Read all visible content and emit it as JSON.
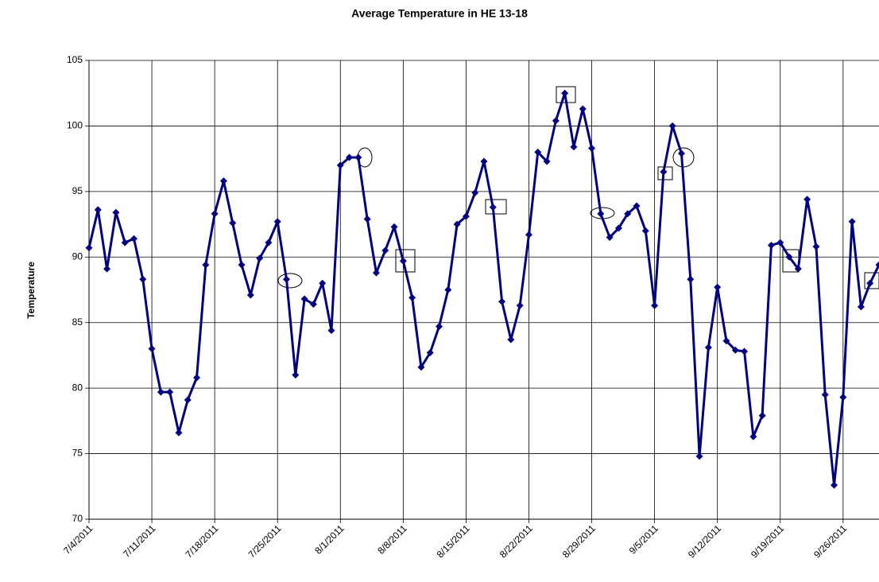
{
  "chart_data": {
    "type": "line",
    "title": "Average Temperature in HE 13-18",
    "y_label": "Temperature",
    "x": [
      "7/4/2011",
      "7/5/2011",
      "7/6/2011",
      "7/7/2011",
      "7/8/2011",
      "7/9/2011",
      "7/10/2011",
      "7/11/2011",
      "7/12/2011",
      "7/13/2011",
      "7/14/2011",
      "7/15/2011",
      "7/16/2011",
      "7/17/2011",
      "7/18/2011",
      "7/19/2011",
      "7/20/2011",
      "7/21/2011",
      "7/22/2011",
      "7/23/2011",
      "7/24/2011",
      "7/25/2011",
      "7/26/2011",
      "7/27/2011",
      "7/28/2011",
      "7/29/2011",
      "7/30/2011",
      "7/31/2011",
      "8/1/2011",
      "8/2/2011",
      "8/3/2011",
      "8/4/2011",
      "8/5/2011",
      "8/6/2011",
      "8/7/2011",
      "8/8/2011",
      "8/9/2011",
      "8/10/2011",
      "8/11/2011",
      "8/12/2011",
      "8/13/2011",
      "8/14/2011",
      "8/15/2011",
      "8/16/2011",
      "8/17/2011",
      "8/18/2011",
      "8/19/2011",
      "8/20/2011",
      "8/21/2011",
      "8/22/2011",
      "8/23/2011",
      "8/24/2011",
      "8/25/2011",
      "8/26/2011",
      "8/27/2011",
      "8/28/2011",
      "8/29/2011",
      "8/30/2011",
      "8/31/2011",
      "9/1/2011",
      "9/2/2011",
      "9/3/2011",
      "9/4/2011",
      "9/5/2011",
      "9/6/2011",
      "9/7/2011",
      "9/8/2011",
      "9/9/2011",
      "9/10/2011",
      "9/11/2011",
      "9/12/2011",
      "9/13/2011",
      "9/14/2011",
      "9/15/2011",
      "9/16/2011",
      "9/17/2011",
      "9/18/2011",
      "9/19/2011",
      "9/20/2011",
      "9/21/2011",
      "9/22/2011",
      "9/23/2011",
      "9/24/2011",
      "9/25/2011",
      "9/26/2011",
      "9/27/2011",
      "9/28/2011",
      "9/29/2011",
      "9/30/2011"
    ],
    "series": [
      {
        "name": "Temperature",
        "color": "#000080",
        "values": [
          90.7,
          93.6,
          89.1,
          93.4,
          91.1,
          91.4,
          88.3,
          83.0,
          79.7,
          79.7,
          76.6,
          79.1,
          80.8,
          89.4,
          93.3,
          95.8,
          92.6,
          89.4,
          87.1,
          89.9,
          91.1,
          92.7,
          88.3,
          81.0,
          86.8,
          86.4,
          88.0,
          84.4,
          97.0,
          97.6,
          97.6,
          92.9,
          88.8,
          90.5,
          92.3,
          89.7,
          86.9,
          81.6,
          82.7,
          84.7,
          87.5,
          92.5,
          93.1,
          94.9,
          97.3,
          93.8,
          86.6,
          83.7,
          86.3,
          91.7,
          98.0,
          97.3,
          100.4,
          102.5,
          98.4,
          101.3,
          98.3,
          93.3,
          91.5,
          92.2,
          93.3,
          93.9,
          92.0,
          86.3,
          96.5,
          100.0,
          97.9,
          88.3,
          74.8,
          83.1,
          87.7,
          83.6,
          82.9,
          82.8,
          76.3,
          77.9,
          90.9,
          91.1,
          90.0,
          89.1,
          94.4,
          90.8,
          79.5,
          72.6,
          79.3,
          92.7,
          86.2,
          88.0,
          89.4
        ]
      }
    ],
    "xlim": [
      "7/4/2011",
      "9/30/2011"
    ],
    "xticks": [
      "7/4/2011",
      "7/11/2011",
      "7/18/2011",
      "7/25/2011",
      "8/1/2011",
      "8/8/2011",
      "8/15/2011",
      "8/22/2011",
      "8/29/2011",
      "9/5/2011",
      "9/12/2011",
      "9/19/2011",
      "9/26/2011"
    ],
    "ylim": [
      70,
      105
    ],
    "yticks": [
      70,
      75,
      80,
      85,
      90,
      95,
      100,
      105
    ],
    "grid": true
  }
}
